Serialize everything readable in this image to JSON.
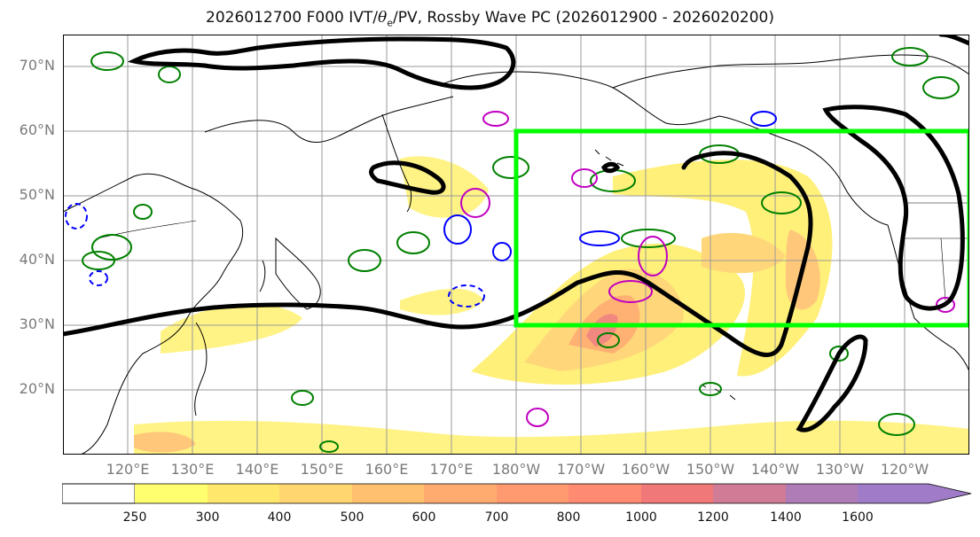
{
  "title": {
    "prefix": "2026012700 F000 IVT/",
    "symbol": "θ",
    "subscript": "e",
    "suffix": "/PV, Rossby Wave PC (2026012900 - 2026020200)"
  },
  "map": {
    "lat_labels": [
      "70°N",
      "60°N",
      "50°N",
      "40°N",
      "30°N",
      "20°N"
    ],
    "lon_labels": [
      "120°E",
      "130°E",
      "140°E",
      "150°E",
      "160°E",
      "170°E",
      "180°W",
      "170°W",
      "160°W",
      "150°W",
      "140°W",
      "130°W",
      "120°W"
    ],
    "extent": {
      "lon_min": 110,
      "lon_max": 250,
      "lat_min": 10,
      "lat_max": 75
    },
    "box": {
      "lon_min": 180,
      "lon_max": 250,
      "lat_min": 30,
      "lat_max": 60,
      "color": "#00ff00"
    },
    "contour_colors": {
      "ivt_fill": "#fff070",
      "waveguide": "#000000",
      "pv_positive": "#008000",
      "pv_negative": "#0000ff",
      "theta_e": "#c000c0"
    }
  },
  "colorbar": {
    "levels": [
      "250",
      "300",
      "400",
      "500",
      "600",
      "700",
      "800",
      "1000",
      "1200",
      "1400",
      "1600"
    ],
    "colors": [
      "#ffff70",
      "#ffe86c",
      "#ffd670",
      "#ffc070",
      "#ffab70",
      "#ff9a70",
      "#ff8a72",
      "#f07878",
      "#d07c96",
      "#b07cb8",
      "#a07cc8"
    ]
  }
}
